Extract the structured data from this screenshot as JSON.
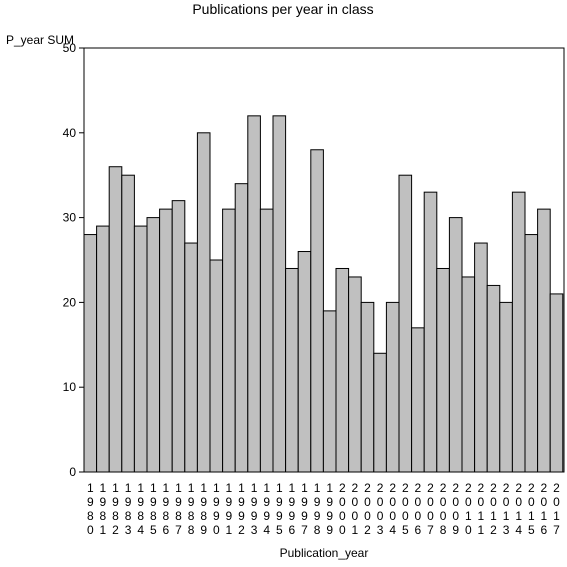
{
  "chart_data": {
    "type": "bar",
    "title": "Publications per year in class",
    "ylabel": "P_year SUM",
    "xlabel": "Publication_year",
    "ylim": [
      0,
      50
    ],
    "yticks": [
      0,
      10,
      20,
      30,
      40,
      50
    ],
    "grid": false,
    "categories": [
      "1980",
      "1981",
      "1982",
      "1983",
      "1984",
      "1985",
      "1986",
      "1987",
      "1988",
      "1989",
      "1990",
      "1991",
      "1992",
      "1993",
      "1994",
      "1995",
      "1996",
      "1997",
      "1998",
      "1999",
      "2000",
      "2001",
      "2002",
      "2003",
      "2004",
      "2005",
      "2006",
      "2007",
      "2008",
      "2009",
      "2010",
      "2011",
      "2012",
      "2013",
      "2014",
      "2015",
      "2016",
      "2017"
    ],
    "values": [
      28,
      29,
      36,
      35,
      29,
      30,
      31,
      32,
      27,
      40,
      25,
      31,
      34,
      42,
      31,
      42,
      24,
      26,
      38,
      19,
      24,
      23,
      20,
      14,
      20,
      35,
      17,
      33,
      24,
      30,
      23,
      27,
      22,
      20,
      33,
      28,
      31,
      21
    ],
    "bar_color": "#c0c0c0"
  }
}
